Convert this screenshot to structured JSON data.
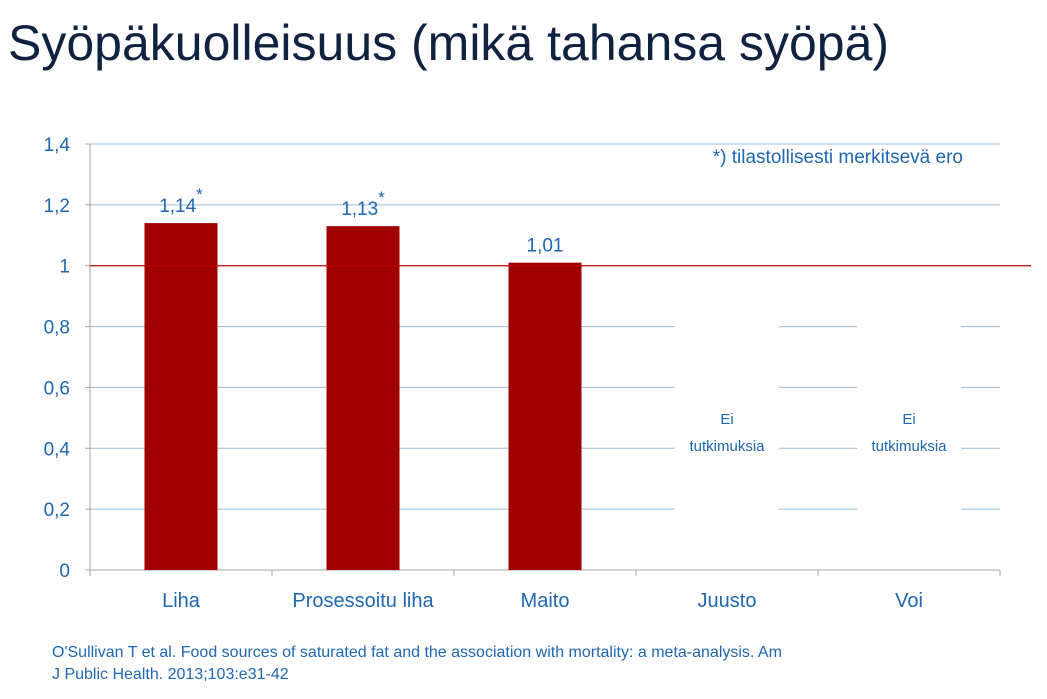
{
  "title": "Syöpäkuolleisuus (mikä tahansa syöpä)",
  "note": "*) tilastollisesti merkitsevä ero",
  "citation": {
    "line1": "O'Sullivan T et al. Food sources of saturated fat and the association with mortality: a meta-analysis. Am",
    "line2": "J Public Health. 2013;103:e31-42"
  },
  "colors": {
    "bar": "#a00000",
    "reference_line": "#c00000",
    "axis_text": "#1f67b0",
    "grid": "#9dbcd4",
    "title": "#0f2240"
  },
  "chart_data": {
    "type": "bar",
    "categories": [
      "Liha",
      "Prosessoitu liha",
      "Maito",
      "Juusto",
      "Voi"
    ],
    "values": [
      1.14,
      1.13,
      1.01,
      null,
      null
    ],
    "data_labels": [
      "1,14",
      "1,13",
      "1,01",
      "",
      ""
    ],
    "significant": [
      true,
      true,
      false,
      false,
      false
    ],
    "significance_marker": "*",
    "no_data_text": [
      "Ei",
      "tutkimuksia"
    ],
    "no_data_categories": [
      "Juusto",
      "Voi"
    ],
    "reference_line": 1,
    "ylim": [
      0,
      1.4
    ],
    "yticks": [
      0,
      0.2,
      0.4,
      0.6,
      0.8,
      1,
      1.2,
      1.4
    ],
    "ytick_labels": [
      "0",
      "0,2",
      "0,4",
      "0,6",
      "0,8",
      "1",
      "1,2",
      "1,4"
    ],
    "grid": true,
    "legend": false
  }
}
